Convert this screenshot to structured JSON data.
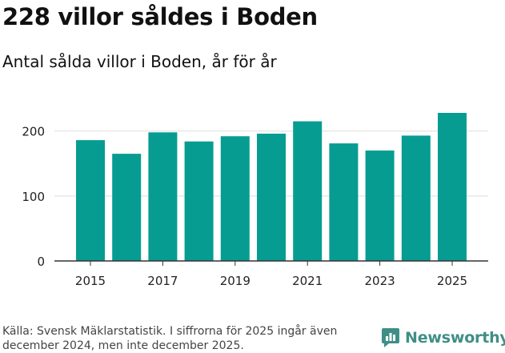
{
  "header": {
    "title": "228 villor såldes i Boden",
    "subtitle": "Antal sålda villor i Boden, år för år"
  },
  "footer": {
    "source": "Källa: Svensk Mäklarstatistik. I siffrorna för 2025 ingår även december 2024, men inte december 2025.",
    "brand": "Newsworthy"
  },
  "colors": {
    "bar": "#079c92",
    "grid": "#dddddd",
    "axis": "#333333",
    "brand": "#3f8f86"
  },
  "chart_data": {
    "type": "bar",
    "title": "Antal sålda villor i Boden, år för år",
    "xlabel": "",
    "ylabel": "",
    "categories": [
      "2015",
      "2016",
      "2017",
      "2018",
      "2019",
      "2020",
      "2021",
      "2022",
      "2023",
      "2024",
      "2025"
    ],
    "values": [
      186,
      165,
      198,
      184,
      192,
      196,
      215,
      181,
      170,
      193,
      228
    ],
    "x_tick_labels": [
      "2015",
      "2017",
      "2019",
      "2021",
      "2023",
      "2025"
    ],
    "y_ticks": [
      0,
      100,
      200
    ],
    "ylim": [
      0,
      228
    ],
    "grid": true
  }
}
